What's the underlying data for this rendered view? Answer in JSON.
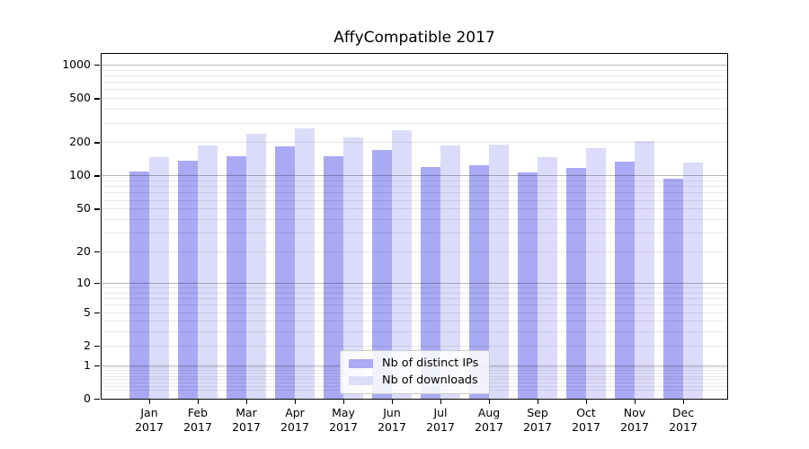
{
  "chart_data": {
    "type": "bar",
    "title": "AffyCompatible 2017",
    "categories": [
      "Jan",
      "Feb",
      "Mar",
      "Apr",
      "May",
      "Jun",
      "Jul",
      "Aug",
      "Sep",
      "Oct",
      "Nov",
      "Dec"
    ],
    "x_axis": {
      "year_line": "2017"
    },
    "y_axis": {
      "scale": "log10(value+1)",
      "ticks": [
        0,
        1,
        2,
        5,
        10,
        20,
        50,
        100,
        200,
        500,
        1000
      ],
      "range_top": 1300
    },
    "series": [
      {
        "name": "Nb of distinct IPs",
        "color": "#a9a9f4",
        "values": [
          109,
          136,
          149,
          184,
          150,
          170,
          120,
          123,
          107,
          117,
          134,
          94
        ]
      },
      {
        "name": "Nb of downloads",
        "color": "#dcdcfa",
        "values": [
          148,
          187,
          240,
          266,
          221,
          258,
          186,
          189,
          148,
          178,
          206,
          132
        ]
      }
    ],
    "legend": {
      "position": "lower center"
    },
    "grid": {
      "major_color": "rgba(0,0,0,0.28)",
      "minor_color": "rgba(0,0,0,0.09)",
      "minor_on": true
    }
  }
}
